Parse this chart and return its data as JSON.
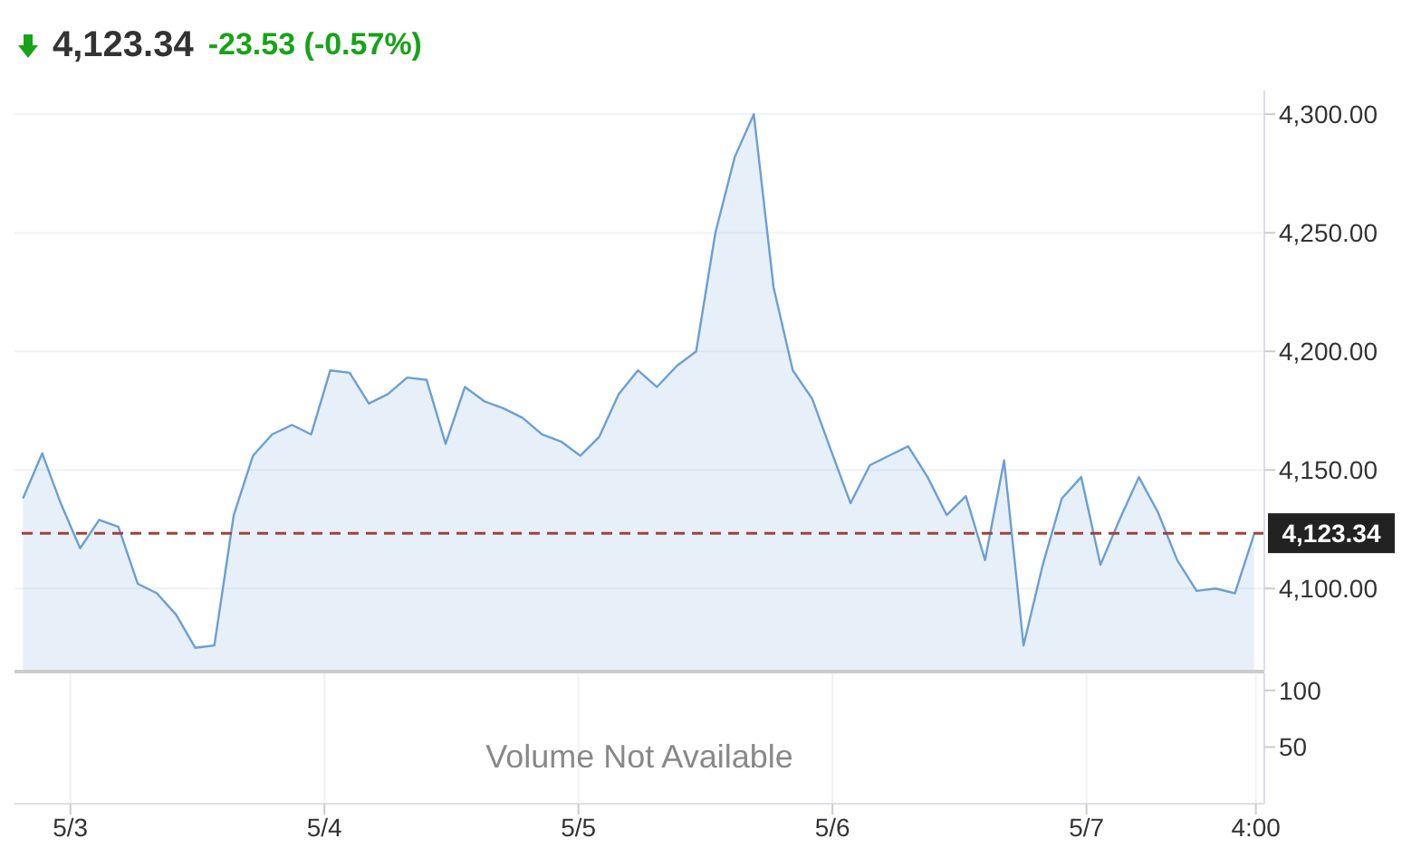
{
  "chart_data": [
    {
      "type": "area",
      "title": "4,123.34",
      "subtitle": "-23.53 (-0.57%)",
      "x": [
        "--05-02T19:31",
        "--05-02T21:20",
        "--05-02T23:05",
        "--05-03T00:55",
        "--05-03T02:43",
        "--05-03T04:32",
        "--05-03T06:22",
        "--05-03T08:10",
        "--05-03T09:59",
        "--05-03T11:48",
        "--05-03T13:36",
        "--05-03T15:26",
        "--05-03T17:15",
        "--05-03T19:03",
        "--05-03T20:56",
        "--05-03T22:45",
        "--05-04T00:33",
        "--05-04T02:23",
        "--05-04T04:12",
        "--05-04T06:00",
        "--05-04T07:49",
        "--05-04T09:39",
        "--05-04T11:27",
        "--05-04T13:16",
        "--05-04T15:06",
        "--05-04T16:54",
        "--05-04T18:43",
        "--05-04T20:33",
        "--05-04T22:21",
        "--05-05T00:10",
        "--05-05T01:58",
        "--05-05T03:48",
        "--05-05T05:37",
        "--05-05T07:25",
        "--05-05T09:19",
        "--05-05T11:07",
        "--05-05T12:56",
        "--05-05T14:46",
        "--05-05T16:34",
        "--05-05T18:26",
        "--05-05T20:15",
        "--05-05T22:05",
        "--05-05T23:53",
        "--05-06T01:42",
        "--05-06T03:32",
        "--05-06T05:20",
        "--05-06T07:09",
        "--05-06T08:59",
        "--05-06T10:47",
        "--05-06T12:36",
        "--05-06T14:25",
        "--05-06T16:13",
        "--05-06T18:03",
        "--05-06T19:52",
        "--05-06T21:40",
        "--05-06T23:30",
        "--05-07T01:19",
        "--05-07T03:07",
        "--05-07T04:57",
        "--05-07T06:46",
        "--05-07T08:34",
        "--05-07T10:24",
        "--05-07T12:13",
        "--05-07T14:01",
        "--05-07T15:50"
      ],
      "series": [
        {
          "color": "#6b9fd4",
          "values": [
            4138,
            4157,
            4136,
            4117,
            4129,
            4126,
            4102,
            4098,
            4089,
            4075,
            4076,
            4131,
            4156,
            4165,
            4169,
            4165,
            4192,
            4191,
            4178,
            4182,
            4189,
            4188,
            4161,
            4185,
            4179,
            4176,
            4172,
            4165,
            4162,
            4156,
            4164,
            4182,
            4192,
            4185,
            4194,
            4200,
            4250,
            4282,
            4300,
            4227,
            4192,
            4180,
            4158,
            4136,
            4152,
            4156,
            4160,
            4147,
            4131,
            4139,
            4112,
            4154,
            4076,
            4110,
            4138,
            4147,
            4110,
            4129,
            4147,
            4132,
            4112,
            4099,
            4100,
            4098,
            4123
          ]
        }
      ],
      "xlim": [
        "--05-02T18:43",
        "--05-07T16:48"
      ],
      "xticks": [
        {
          "value": "--05-03",
          "label": null
        },
        {
          "value": "--05-04",
          "label": null
        },
        {
          "value": "--05-05",
          "label": null
        },
        {
          "value": "--05-06",
          "label": null
        },
        {
          "value": "--05-07",
          "label": null
        },
        {
          "value": "--05-07T16:00",
          "label": null
        }
      ],
      "ylim": [
        4065,
        4310
      ],
      "yticks": [
        {
          "value": 4100,
          "label": "4,100.00"
        },
        {
          "value": 4150,
          "label": "4,150.00"
        },
        {
          "value": 4200,
          "label": "4,200.00"
        },
        {
          "value": 4250,
          "label": "4,250.00"
        },
        {
          "value": 4300,
          "label": "4,300.00"
        }
      ],
      "ref_lines": [
        {
          "axis": "y",
          "value": 4123.34,
          "label": "4,123.34",
          "color": "#a0413c",
          "line_style": "dashed"
        }
      ],
      "grid": true,
      "tick_labels": "y"
    },
    {
      "type": "bar",
      "annotations": [
        "Volume Not Available"
      ],
      "xlim": [
        "--05-02T18:43",
        "--05-07T16:48"
      ],
      "xticks": [
        {
          "value": "--05-03",
          "label": "5/3"
        },
        {
          "value": "--05-04",
          "label": "5/4"
        },
        {
          "value": "--05-05",
          "label": "5/5"
        },
        {
          "value": "--05-06",
          "label": "5/6"
        },
        {
          "value": "--05-07",
          "label": "5/7"
        },
        {
          "value": "--05-07T16:00",
          "label": "4:00"
        }
      ],
      "ylim": [
        0,
        115
      ],
      "yticks": [
        50,
        100
      ],
      "grid": "x"
    }
  ]
}
